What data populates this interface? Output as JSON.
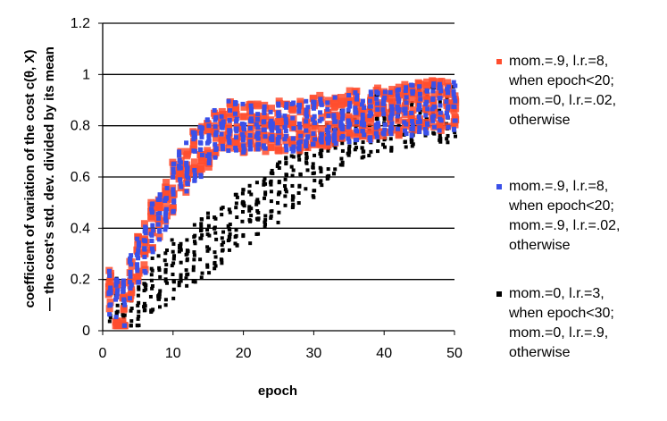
{
  "chart_data": {
    "type": "scatter",
    "xlabel": "epoch",
    "ylabel_line1": "coefficient of variation of the cost c(θ, X)",
    "ylabel_line2": "— the cost's std. dev. divided by its mean",
    "xlim": [
      0,
      50
    ],
    "ylim": [
      0,
      1.2
    ],
    "xticks": [
      "0",
      "10",
      "20",
      "30",
      "40",
      "50"
    ],
    "yticks": [
      "0",
      "0.2",
      "0.4",
      "0.6",
      "0.8",
      "1",
      "1.2"
    ],
    "grid": "horizontal",
    "legend_position": "right",
    "series": [
      {
        "name": "mom.=.9, l.r.=8, when epoch<20; mom.=0, l.r.=.02, otherwise",
        "legend_lines": [
          "mom.=.9, l.r.=8,",
          "when epoch<20;",
          "mom.=0, l.r.=.02,",
          "otherwise"
        ],
        "color": "#ff4d2e",
        "mean": [
          [
            1,
            0.15
          ],
          [
            2,
            0.1
          ],
          [
            3,
            0.1
          ],
          [
            4,
            0.2
          ],
          [
            5,
            0.27
          ],
          [
            6,
            0.32
          ],
          [
            7,
            0.4
          ],
          [
            8,
            0.44
          ],
          [
            9,
            0.48
          ],
          [
            10,
            0.56
          ],
          [
            11,
            0.6
          ],
          [
            12,
            0.64
          ],
          [
            13,
            0.68
          ],
          [
            14,
            0.7
          ],
          [
            15,
            0.73
          ],
          [
            16,
            0.76
          ],
          [
            17,
            0.78
          ],
          [
            18,
            0.8
          ],
          [
            19,
            0.8
          ],
          [
            20,
            0.79
          ],
          [
            21,
            0.79
          ],
          [
            22,
            0.79
          ],
          [
            23,
            0.79
          ],
          [
            24,
            0.8
          ],
          [
            25,
            0.8
          ],
          [
            26,
            0.8
          ],
          [
            27,
            0.8
          ],
          [
            28,
            0.8
          ],
          [
            29,
            0.81
          ],
          [
            30,
            0.81
          ],
          [
            31,
            0.82
          ],
          [
            32,
            0.82
          ],
          [
            33,
            0.83
          ],
          [
            34,
            0.83
          ],
          [
            35,
            0.84
          ],
          [
            36,
            0.84
          ],
          [
            37,
            0.85
          ],
          [
            38,
            0.85
          ],
          [
            39,
            0.85
          ],
          [
            40,
            0.86
          ],
          [
            41,
            0.86
          ],
          [
            42,
            0.86
          ],
          [
            43,
            0.87
          ],
          [
            44,
            0.87
          ],
          [
            45,
            0.87
          ],
          [
            46,
            0.88
          ],
          [
            47,
            0.88
          ],
          [
            48,
            0.88
          ],
          [
            49,
            0.88
          ],
          [
            50,
            0.89
          ]
        ],
        "spread": 0.1
      },
      {
        "name": "mom.=.9, l.r.=8, when epoch<20; mom.=.9, l.r.=.02, otherwise",
        "legend_lines": [
          "mom.=.9, l.r.=8,",
          "when epoch<20;",
          "mom.=.9, l.r.=.02,",
          "otherwise"
        ],
        "color": "#3a50e8",
        "mean": [
          [
            1,
            0.15
          ],
          [
            2,
            0.1
          ],
          [
            3,
            0.1
          ],
          [
            4,
            0.2
          ],
          [
            5,
            0.27
          ],
          [
            6,
            0.32
          ],
          [
            7,
            0.4
          ],
          [
            8,
            0.44
          ],
          [
            9,
            0.48
          ],
          [
            10,
            0.56
          ],
          [
            11,
            0.6
          ],
          [
            12,
            0.64
          ],
          [
            13,
            0.68
          ],
          [
            14,
            0.7
          ],
          [
            15,
            0.73
          ],
          [
            16,
            0.76
          ],
          [
            17,
            0.78
          ],
          [
            18,
            0.8
          ],
          [
            19,
            0.8
          ],
          [
            20,
            0.79
          ],
          [
            21,
            0.79
          ],
          [
            22,
            0.79
          ],
          [
            23,
            0.78
          ],
          [
            24,
            0.79
          ],
          [
            25,
            0.79
          ],
          [
            26,
            0.8
          ],
          [
            27,
            0.8
          ],
          [
            28,
            0.8
          ],
          [
            29,
            0.8
          ],
          [
            30,
            0.81
          ],
          [
            31,
            0.81
          ],
          [
            32,
            0.82
          ],
          [
            33,
            0.82
          ],
          [
            34,
            0.82
          ],
          [
            35,
            0.83
          ],
          [
            36,
            0.83
          ],
          [
            37,
            0.84
          ],
          [
            38,
            0.84
          ],
          [
            39,
            0.84
          ],
          [
            40,
            0.85
          ],
          [
            41,
            0.85
          ],
          [
            42,
            0.85
          ],
          [
            43,
            0.85
          ],
          [
            44,
            0.86
          ],
          [
            45,
            0.86
          ],
          [
            46,
            0.86
          ],
          [
            47,
            0.87
          ],
          [
            48,
            0.87
          ],
          [
            49,
            0.87
          ],
          [
            50,
            0.87
          ]
        ],
        "spread": 0.1
      },
      {
        "name": "mom.=0, l.r.=3, when epoch<30; mom.=0, l.r.=.9, otherwise",
        "legend_lines": [
          "mom.=0, l.r.=3,",
          "when epoch<30;",
          "mom.=0, l.r.=.9,",
          "otherwise"
        ],
        "color": "#000000",
        "mean": [
          [
            1,
            0.13
          ],
          [
            2,
            0.09
          ],
          [
            3,
            0.08
          ],
          [
            4,
            0.09
          ],
          [
            5,
            0.12
          ],
          [
            6,
            0.14
          ],
          [
            7,
            0.17
          ],
          [
            8,
            0.19
          ],
          [
            9,
            0.21
          ],
          [
            10,
            0.24
          ],
          [
            11,
            0.26
          ],
          [
            12,
            0.28
          ],
          [
            13,
            0.3
          ],
          [
            14,
            0.32
          ],
          [
            15,
            0.34
          ],
          [
            16,
            0.36
          ],
          [
            17,
            0.38
          ],
          [
            18,
            0.4
          ],
          [
            19,
            0.42
          ],
          [
            20,
            0.44
          ],
          [
            21,
            0.46
          ],
          [
            22,
            0.48
          ],
          [
            23,
            0.5
          ],
          [
            24,
            0.52
          ],
          [
            25,
            0.54
          ],
          [
            26,
            0.56
          ],
          [
            27,
            0.58
          ],
          [
            28,
            0.6
          ],
          [
            29,
            0.62
          ],
          [
            30,
            0.64
          ],
          [
            31,
            0.68
          ],
          [
            32,
            0.71
          ],
          [
            33,
            0.73
          ],
          [
            34,
            0.75
          ],
          [
            35,
            0.77
          ],
          [
            36,
            0.78
          ],
          [
            37,
            0.79
          ],
          [
            38,
            0.8
          ],
          [
            39,
            0.81
          ],
          [
            40,
            0.82
          ],
          [
            41,
            0.82
          ],
          [
            42,
            0.83
          ],
          [
            43,
            0.83
          ],
          [
            44,
            0.84
          ],
          [
            45,
            0.84
          ],
          [
            46,
            0.84
          ],
          [
            47,
            0.85
          ],
          [
            48,
            0.85
          ],
          [
            49,
            0.85
          ],
          [
            50,
            0.86
          ]
        ],
        "spread": 0.12
      }
    ]
  }
}
